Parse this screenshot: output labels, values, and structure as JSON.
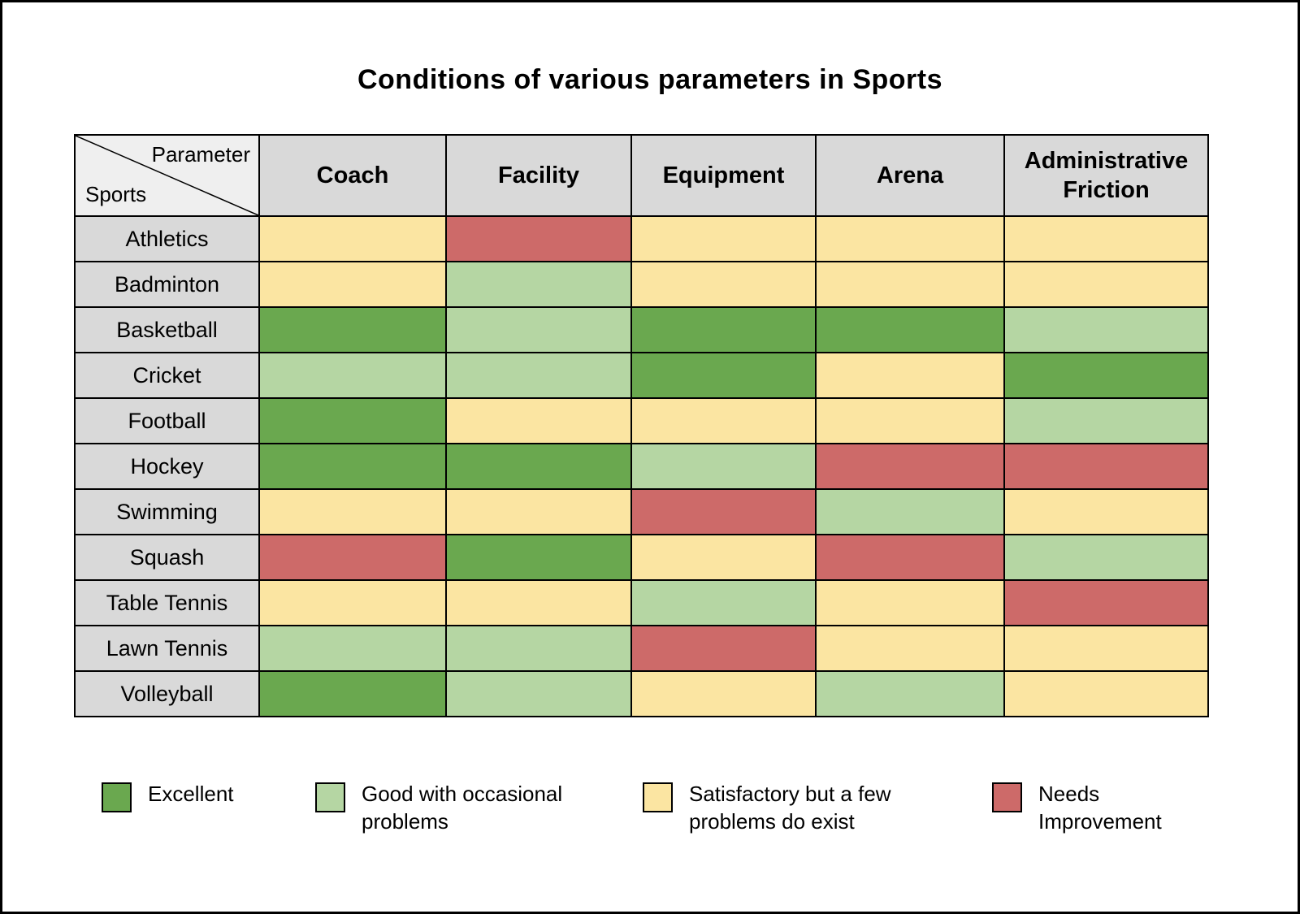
{
  "page": {
    "title": "Conditions of various parameters in Sports"
  },
  "corner": {
    "top_label": "Parameter",
    "bottom_label": "Sports"
  },
  "colors": {
    "excellent": "#6AA84F",
    "good": "#B5D6A3",
    "satisfactory": "#FBE5A2",
    "needs_improvement": "#CD6A69",
    "header_bg": "#D9D9D9",
    "corner_bg": "#EFEFEF",
    "border": "#000000"
  },
  "legend": {
    "items": [
      {
        "key": "excellent",
        "label": "Excellent"
      },
      {
        "key": "good",
        "label": "Good with occasional problems"
      },
      {
        "key": "satisfactory",
        "label": "Satisfactory but a few problems do exist"
      },
      {
        "key": "needs_improvement",
        "label": "Needs Improvement"
      }
    ]
  },
  "chart_data": {
    "type": "heatmap",
    "title": "Conditions of various parameters in Sports",
    "x_categories": [
      "Coach",
      "Facility",
      "Equipment",
      "Arena",
      "Administrative Friction"
    ],
    "y_categories": [
      "Athletics",
      "Badminton",
      "Basketball",
      "Cricket",
      "Football",
      "Hockey",
      "Swimming",
      "Squash",
      "Table Tennis",
      "Lawn Tennis",
      "Volleyball"
    ],
    "values": [
      [
        "satisfactory",
        "needs_improvement",
        "satisfactory",
        "satisfactory",
        "satisfactory"
      ],
      [
        "satisfactory",
        "good",
        "satisfactory",
        "satisfactory",
        "satisfactory"
      ],
      [
        "excellent",
        "good",
        "excellent",
        "excellent",
        "good"
      ],
      [
        "good",
        "good",
        "excellent",
        "satisfactory",
        "excellent"
      ],
      [
        "excellent",
        "satisfactory",
        "satisfactory",
        "satisfactory",
        "good"
      ],
      [
        "excellent",
        "excellent",
        "good",
        "needs_improvement",
        "needs_improvement"
      ],
      [
        "satisfactory",
        "satisfactory",
        "needs_improvement",
        "good",
        "satisfactory"
      ],
      [
        "needs_improvement",
        "excellent",
        "satisfactory",
        "needs_improvement",
        "good"
      ],
      [
        "satisfactory",
        "satisfactory",
        "good",
        "satisfactory",
        "needs_improvement"
      ],
      [
        "good",
        "good",
        "needs_improvement",
        "satisfactory",
        "satisfactory"
      ],
      [
        "excellent",
        "good",
        "satisfactory",
        "good",
        "satisfactory"
      ]
    ],
    "value_labels": {
      "excellent": "Excellent",
      "good": "Good with occasional problems",
      "satisfactory": "Satisfactory but a few problems do exist",
      "needs_improvement": "Needs Improvement"
    },
    "legend_position": "bottom"
  }
}
